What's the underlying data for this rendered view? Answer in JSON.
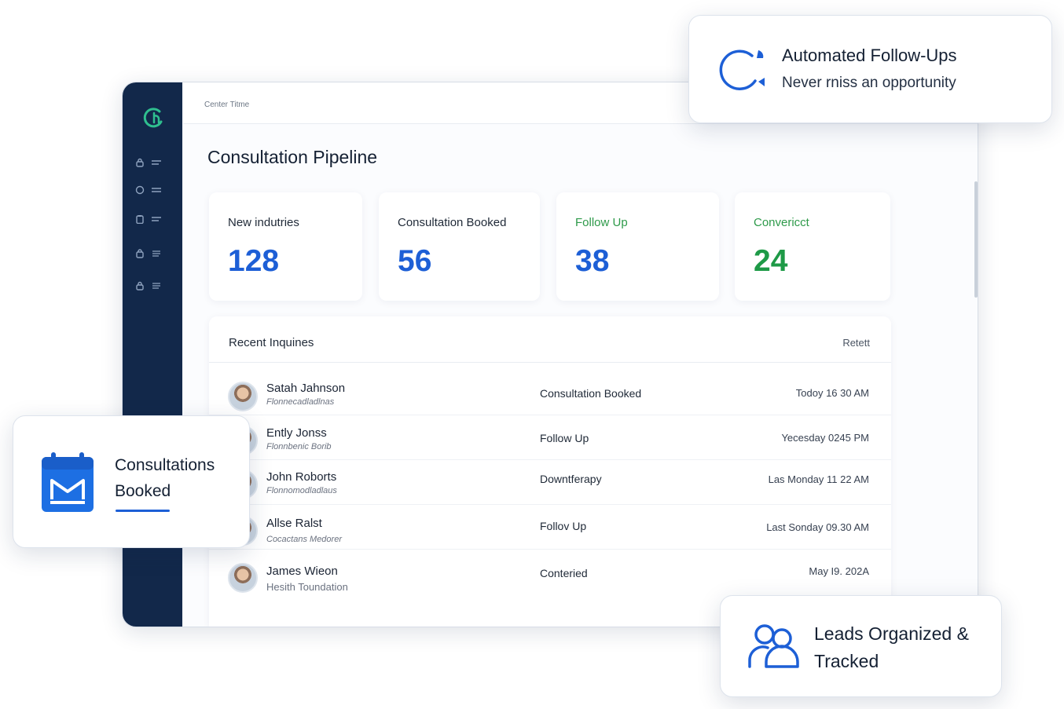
{
  "window": {
    "title": "Center Titme"
  },
  "sidebar": {
    "items": [
      {
        "icon": "lock-icon"
      },
      {
        "icon": "circle-icon"
      },
      {
        "icon": "clipboard-icon"
      },
      {
        "icon": "lock-icon"
      },
      {
        "icon": "lock-icon"
      }
    ]
  },
  "main": {
    "page_title": "Consultation Pipeline",
    "stats": [
      {
        "label": "New indutries",
        "value": "128"
      },
      {
        "label": "Consultation Booked",
        "value": "56"
      },
      {
        "label": "Follow Up",
        "value": "38"
      },
      {
        "label": "Convericct",
        "value": "24"
      }
    ],
    "recent": {
      "title": "Recent Inquines",
      "action": "Retett",
      "rows": [
        {
          "name": "Satah Jahnson",
          "org": "Flonnecadladlnas",
          "status": "Consultation Booked",
          "time": "Todoy  16 30 AM"
        },
        {
          "name": "Ently Jonss",
          "org": "Flonnbenic Borib",
          "status": "Follow Up",
          "time": "Yecesday  0245 PM"
        },
        {
          "name": "John Roborts",
          "org": "Flonnomodladlaus",
          "status": "Downtferapy",
          "time": "Las Monday 11 22 AM"
        },
        {
          "name": "Allse Ralst",
          "org": "Cocactans  Medorer",
          "status": "Follov Up",
          "time": "Last Sonday 09.30 AM"
        },
        {
          "name": "James Wieon",
          "org": "Hesith Toundation",
          "status": "Conteried",
          "time": "May I9.  202A"
        }
      ]
    }
  },
  "cards": {
    "followups": {
      "title": "Automated Follow-Ups",
      "subtitle": "Never rniss an opportunity",
      "icon": "refresh-icon"
    },
    "booked": {
      "title": "Consultations Booked",
      "icon": "calendar-icon"
    },
    "leads": {
      "title": "Leads Organized & Tracked",
      "icon": "users-icon"
    }
  },
  "colors": {
    "accent": "#1d5fd6",
    "success": "#1e9a47",
    "sidebar": "#12284a",
    "logo": "#2fbf8f"
  }
}
